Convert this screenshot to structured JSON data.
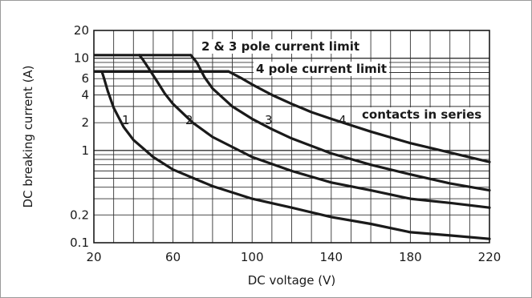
{
  "chart_data": {
    "type": "line",
    "xlabel": "DC voltage (V)",
    "ylabel": "DC breaking current (A)",
    "xlim": [
      20,
      220
    ],
    "ylim": [
      0.1,
      20
    ],
    "y_scale": "log",
    "x_ticks": [
      "20",
      "60",
      "100",
      "140",
      "180",
      "220"
    ],
    "y_ticks": [
      {
        "value": 20,
        "label": "20"
      },
      {
        "value": 10,
        "label": "10"
      },
      {
        "value": 6,
        "label": "6"
      },
      {
        "value": 4,
        "label": "4"
      },
      {
        "value": 2,
        "label": "2"
      },
      {
        "value": 1,
        "label": "1"
      },
      {
        "value": 0.2,
        "label": "0.2"
      },
      {
        "value": 0.1,
        "label": "0.1"
      }
    ],
    "grid": true,
    "series": [
      {
        "name": "1",
        "x": [
          24,
          25,
          27,
          30,
          35,
          40,
          50,
          60,
          80,
          100,
          120,
          140,
          160,
          180,
          200,
          220
        ],
        "y": [
          7.2,
          6.2,
          4.4,
          2.9,
          1.8,
          1.3,
          0.85,
          0.62,
          0.41,
          0.3,
          0.24,
          0.19,
          0.16,
          0.13,
          0.12,
          0.11
        ]
      },
      {
        "name": "2",
        "x": [
          43,
          45,
          48,
          52,
          56,
          60,
          70,
          80,
          100,
          120,
          140,
          160,
          180,
          200,
          220
        ],
        "y": [
          10.8,
          9.5,
          7.6,
          5.6,
          4.1,
          3.2,
          2.0,
          1.4,
          0.85,
          0.6,
          0.45,
          0.37,
          0.3,
          0.27,
          0.24
        ]
      },
      {
        "name": "3",
        "x": [
          69,
          72,
          76,
          80,
          90,
          100,
          110,
          120,
          140,
          160,
          180,
          200,
          220
        ],
        "y": [
          10.8,
          9.0,
          6.2,
          4.7,
          3.0,
          2.2,
          1.7,
          1.35,
          0.93,
          0.7,
          0.55,
          0.44,
          0.37
        ]
      },
      {
        "name": "4",
        "x": [
          88,
          95,
          100,
          110,
          120,
          130,
          140,
          160,
          180,
          200,
          220
        ],
        "y": [
          7.2,
          6.0,
          5.2,
          4.0,
          3.2,
          2.6,
          2.2,
          1.6,
          1.2,
          0.95,
          0.75
        ]
      }
    ],
    "limits": [
      {
        "label": "2 & 3 pole current limit",
        "y": 10.8,
        "x_start": 20,
        "x_end": 69
      },
      {
        "label": "4 pole current limit",
        "y": 7.2,
        "x_start": 20,
        "x_end": 88
      }
    ],
    "series_label": "contacts in series"
  }
}
